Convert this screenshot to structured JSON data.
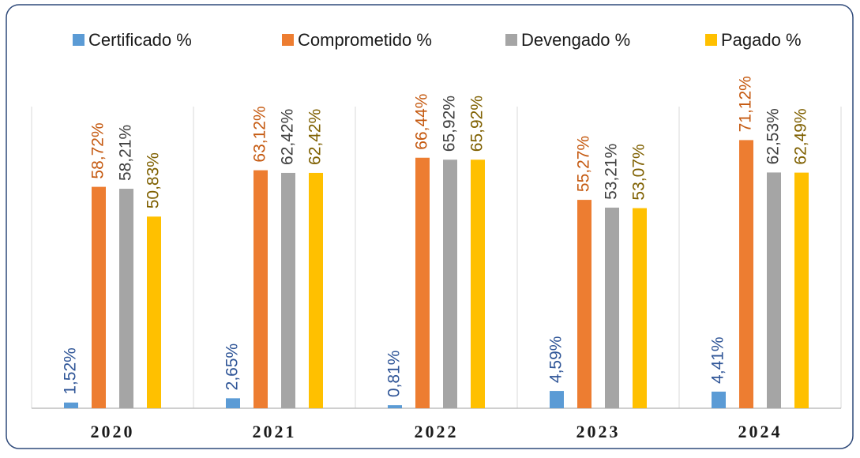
{
  "chart_data": {
    "type": "bar",
    "categories": [
      "2020",
      "2021",
      "2022",
      "2023",
      "2024"
    ],
    "series": [
      {
        "name": "Certificado %",
        "color": "#5b9bd5",
        "label_color": "#2f5597",
        "values": [
          1.52,
          2.65,
          0.81,
          4.59,
          4.41
        ],
        "value_labels": [
          "1,52%",
          "2,65%",
          "0,81%",
          "4,59%",
          "4,41%"
        ]
      },
      {
        "name": "Comprometido %",
        "color": "#ed7d31",
        "label_color": "#c55a11",
        "values": [
          58.72,
          63.12,
          66.44,
          55.27,
          71.12
        ],
        "value_labels": [
          "58,72%",
          "63,12%",
          "66,44%",
          "55,27%",
          "71,12%"
        ]
      },
      {
        "name": "Devengado %",
        "color": "#a5a5a5",
        "label_color": "#404040",
        "values": [
          58.21,
          62.42,
          65.92,
          53.21,
          62.53
        ],
        "value_labels": [
          "58,21%",
          "62,42%",
          "65,92%",
          "53,21%",
          "62,53%"
        ]
      },
      {
        "name": "Pagado %",
        "color": "#ffc000",
        "label_color": "#7f6000",
        "values": [
          50.83,
          62.42,
          65.92,
          53.07,
          62.49
        ],
        "value_labels": [
          "50,83%",
          "62,42%",
          "65,92%",
          "53,07%",
          "62,49%"
        ]
      }
    ],
    "ylim": [
      0,
      80
    ],
    "legend": "top"
  }
}
